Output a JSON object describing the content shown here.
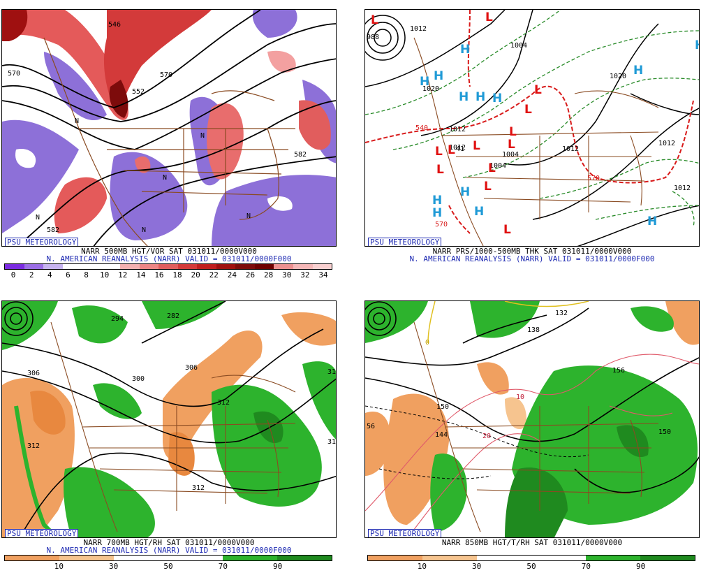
{
  "panels": [
    {
      "badge": "PSU METEOROLOGY",
      "caption1": "NARR 500MB HGT/VOR SAT 031011/0000V000",
      "caption2": "N. AMERICAN REANALYSIS (NARR) VALID = 031011/0000F000",
      "colorbar": {
        "colors": [
          "#7b2ce0",
          "#9b6ee5",
          "#c6b3f0",
          "#ffffff",
          "#ffffff",
          "#ffffff",
          "#f3b0b0",
          "#ec8585",
          "#e15d5d",
          "#d43a3a",
          "#c01f1f",
          "#9f1010",
          "#7d0b0b",
          "#6e0000",
          "#ec9090",
          "#f5b7b7",
          "#f9d0d0"
        ],
        "labels": [
          "0",
          "2",
          "4",
          "6",
          "8",
          "10",
          "12",
          "14",
          "16",
          "18",
          "20",
          "22",
          "24",
          "26",
          "28",
          "30",
          "32",
          "34"
        ]
      },
      "contour_labels": [
        "546",
        "570",
        "570",
        "552",
        "582",
        "582",
        "N",
        "N",
        "N",
        "N",
        "N",
        "N"
      ]
    },
    {
      "badge": "PSU METEOROLOGY",
      "caption1": "NARR PRS/1000-500MB THK SAT 031011/0000V000",
      "caption2": "N. AMERICAN REANALYSIS (NARR) VALID = 031011/0000F000",
      "contour_labels": [
        "988",
        "1012",
        "1004",
        "1020",
        "1020",
        "1012",
        "1012",
        "1012",
        "540",
        "570",
        "570",
        "1004",
        "1012",
        "1004",
        "1012",
        "41"
      ],
      "pressure_marks": [
        "L",
        "L",
        "L",
        "L",
        "L",
        "L",
        "L",
        "L",
        "L",
        "L",
        "L",
        "L",
        "L",
        "H",
        "H",
        "H",
        "H",
        "H",
        "H",
        "H",
        "H",
        "H",
        "H",
        "H",
        "H",
        "H"
      ]
    },
    {
      "badge": "PSU METEOROLOGY",
      "caption1": "NARR 700MB HGT/RH SAT 031011/0000V000",
      "caption2": "N. AMERICAN REANALYSIS (NARR) VALID = 031011/0000F000",
      "colorbar": {
        "colors": [
          "#f0a060",
          "#f0a060",
          "#f6c48f",
          "#f6c48f",
          "#ffffff",
          "#ffffff",
          "#ffffff",
          "#ffffff",
          "#2db32d",
          "#2db32d",
          "#1f8a1f",
          "#1f8a1f"
        ],
        "labels": [
          "10",
          "30",
          "50",
          "70",
          "90"
        ]
      },
      "contour_labels": [
        "282",
        "294",
        "306",
        "300",
        "306",
        "312",
        "312",
        "312",
        "31",
        "31"
      ]
    },
    {
      "badge": "PSU METEOROLOGY",
      "caption1": "NARR 850MB HGT/T/RH SAT 031011/0000V000",
      "caption2": "",
      "colorbar": {
        "colors": [
          "#f0a060",
          "#f0a060",
          "#f6c48f",
          "#f6c48f",
          "#ffffff",
          "#ffffff",
          "#ffffff",
          "#ffffff",
          "#2db32d",
          "#2db32d",
          "#1f8a1f",
          "#1f8a1f"
        ],
        "labels": [
          "10",
          "30",
          "50",
          "70",
          "90"
        ]
      },
      "contour_labels": [
        "138",
        "132",
        "156",
        "150",
        "150",
        "144",
        "56",
        "10",
        "20",
        "0"
      ]
    }
  ]
}
